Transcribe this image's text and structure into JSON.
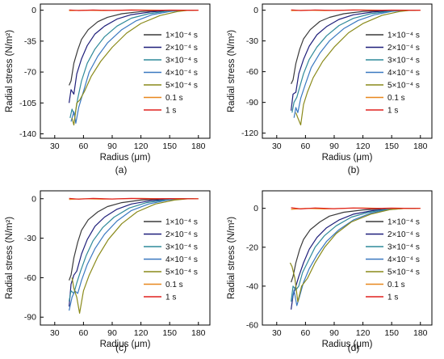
{
  "figure": {
    "panels_order": [
      "a",
      "b",
      "c",
      "d"
    ]
  },
  "chart_data": [
    {
      "panel_label": "(a)",
      "type": "line",
      "xlabel": "Radius (μm)",
      "ylabel": "Radial stress (N/m²)",
      "xlim": [
        15,
        192
      ],
      "ylim": [
        -145,
        7
      ],
      "xticks": [
        30,
        60,
        90,
        120,
        150,
        180
      ],
      "yticks": [
        0,
        -35,
        -70,
        -105,
        -140
      ],
      "grid": false,
      "legend_position": "right",
      "series": [
        {
          "name": "1×10⁻⁴ s",
          "color": "#3a3a3a",
          "x": [
            45,
            47,
            50,
            54,
            58,
            65,
            75,
            85,
            100,
            120,
            140,
            160,
            175
          ],
          "y": [
            -85,
            -80,
            -60,
            -45,
            -33,
            -22,
            -13,
            -8,
            -4,
            -1.5,
            -0.5,
            0,
            0
          ]
        },
        {
          "name": "2×10⁻⁴ s",
          "color": "#1f1f7a",
          "x": [
            45,
            47,
            50,
            53,
            58,
            64,
            72,
            82,
            95,
            110,
            130,
            150,
            165,
            175
          ],
          "y": [
            -105,
            -90,
            -95,
            -72,
            -55,
            -40,
            -27,
            -18,
            -10,
            -5,
            -2,
            -0.5,
            0,
            0
          ]
        },
        {
          "name": "3×10⁻⁴ s",
          "color": "#2f8a9a",
          "x": [
            46,
            48,
            51,
            54,
            58,
            64,
            72,
            82,
            95,
            110,
            128,
            148,
            165,
            175
          ],
          "y": [
            -122,
            -112,
            -120,
            -100,
            -80,
            -60,
            -44,
            -30,
            -18,
            -9,
            -4,
            -1,
            0,
            0
          ]
        },
        {
          "name": "4×10⁻⁴ s",
          "color": "#3a78c0",
          "x": [
            47,
            50,
            52,
            55,
            60,
            66,
            75,
            85,
            100,
            115,
            132,
            150,
            165,
            175
          ],
          "y": [
            -126,
            -115,
            -128,
            -110,
            -92,
            -70,
            -52,
            -37,
            -22,
            -12,
            -5,
            -1.5,
            0,
            0
          ]
        },
        {
          "name": "5×10⁻⁴ s",
          "color": "#8a8a1a",
          "x": [
            48,
            50,
            53,
            56,
            61,
            68,
            78,
            90,
            105,
            120,
            140,
            158,
            170,
            178
          ],
          "y": [
            -122,
            -130,
            -105,
            -102,
            -92,
            -75,
            -58,
            -42,
            -26,
            -15,
            -6,
            -1.5,
            0,
            0
          ]
        },
        {
          "name": "0.1 s",
          "color": "#e8871e",
          "x": [
            45,
            60,
            80,
            100,
            120,
            140,
            160,
            180
          ],
          "y": [
            -0.5,
            0,
            -0.3,
            0,
            0.2,
            0,
            -0.1,
            0
          ]
        },
        {
          "name": "1 s",
          "color": "#e0201e",
          "x": [
            45,
            55,
            70,
            90,
            110,
            130,
            150,
            170,
            180
          ],
          "y": [
            0.3,
            -0.3,
            0.2,
            -0.2,
            0.2,
            -0.1,
            0.1,
            0,
            0
          ]
        }
      ]
    },
    {
      "panel_label": "(b)",
      "type": "line",
      "xlabel": "Radius (μm)",
      "ylabel": "Radial stress (N/m²)",
      "xlim": [
        15,
        192
      ],
      "ylim": [
        -125,
        6
      ],
      "xticks": [
        30,
        60,
        90,
        120,
        150,
        180
      ],
      "yticks": [
        0,
        -30,
        -60,
        -90,
        -120
      ],
      "grid": false,
      "legend_position": "right",
      "series": [
        {
          "name": "1×10⁻⁴ s",
          "color": "#3a3a3a",
          "x": [
            45,
            47,
            50,
            54,
            58,
            65,
            75,
            85,
            100,
            120,
            140,
            160,
            175
          ],
          "y": [
            -72,
            -68,
            -52,
            -38,
            -28,
            -19,
            -11,
            -7,
            -3.5,
            -1.2,
            -0.4,
            0,
            0
          ]
        },
        {
          "name": "2×10⁻⁴ s",
          "color": "#1f1f7a",
          "x": [
            45,
            47,
            50,
            53,
            58,
            64,
            72,
            82,
            95,
            110,
            130,
            150,
            165,
            175
          ],
          "y": [
            -98,
            -82,
            -80,
            -62,
            -48,
            -35,
            -24,
            -16,
            -9,
            -4.5,
            -1.8,
            -0.4,
            0,
            0
          ]
        },
        {
          "name": "3×10⁻⁴ s",
          "color": "#2f8a9a",
          "x": [
            46,
            48,
            51,
            54,
            58,
            64,
            72,
            82,
            95,
            110,
            128,
            148,
            165,
            175
          ],
          "y": [
            -100,
            -90,
            -85,
            -75,
            -62,
            -48,
            -36,
            -25,
            -15,
            -8,
            -3.5,
            -1,
            0,
            0
          ]
        },
        {
          "name": "4×10⁻⁴ s",
          "color": "#3a78c0",
          "x": [
            48,
            50,
            52,
            55,
            60,
            66,
            75,
            85,
            100,
            115,
            132,
            150,
            165,
            175
          ],
          "y": [
            -105,
            -95,
            -100,
            -86,
            -72,
            -56,
            -42,
            -30,
            -18,
            -10,
            -4.5,
            -1.2,
            0,
            0
          ]
        },
        {
          "name": "5×10⁻⁴ s",
          "color": "#8a8a1a",
          "x": [
            50,
            52,
            55,
            58,
            62,
            68,
            78,
            90,
            105,
            120,
            140,
            158,
            170,
            178
          ],
          "y": [
            -100,
            -105,
            -112,
            -92,
            -80,
            -66,
            -50,
            -36,
            -22,
            -13,
            -5,
            -1.3,
            0,
            0
          ]
        },
        {
          "name": "0.1 s",
          "color": "#e8871e",
          "x": [
            45,
            60,
            80,
            100,
            120,
            140,
            160,
            180
          ],
          "y": [
            -0.5,
            0,
            -0.3,
            0,
            0.2,
            0,
            -0.1,
            0
          ]
        },
        {
          "name": "1 s",
          "color": "#e0201e",
          "x": [
            45,
            55,
            70,
            90,
            110,
            130,
            150,
            170,
            180
          ],
          "y": [
            0.3,
            -0.3,
            0.2,
            -0.2,
            0.2,
            -0.1,
            0.1,
            0,
            0
          ]
        }
      ]
    },
    {
      "panel_label": "(c)",
      "type": "line",
      "xlabel": "Radius (μm)",
      "ylabel": "Radial stress (N/m²)",
      "xlim": [
        15,
        192
      ],
      "ylim": [
        -96,
        6
      ],
      "xticks": [
        30,
        60,
        90,
        120,
        150,
        180
      ],
      "yticks": [
        0,
        -30,
        -60,
        -90
      ],
      "grid": false,
      "legend_position": "right",
      "series": [
        {
          "name": "1×10⁻⁴ s",
          "color": "#3a3a3a",
          "x": [
            45,
            47,
            50,
            54,
            58,
            65,
            75,
            85,
            100,
            120,
            140,
            160,
            175
          ],
          "y": [
            -62,
            -58,
            -45,
            -33,
            -24,
            -16,
            -10,
            -6,
            -3,
            -1,
            -0.3,
            0,
            0
          ]
        },
        {
          "name": "2×10⁻⁴ s",
          "color": "#1f1f7a",
          "x": [
            45,
            47,
            50,
            53,
            58,
            64,
            72,
            82,
            95,
            110,
            130,
            150,
            165,
            175
          ],
          "y": [
            -82,
            -65,
            -58,
            -55,
            -42,
            -31,
            -21,
            -14,
            -8,
            -4,
            -1.5,
            -0.4,
            0,
            0
          ]
        },
        {
          "name": "3×10⁻⁴ s",
          "color": "#2f8a9a",
          "x": [
            45,
            47,
            50,
            53,
            57,
            63,
            70,
            80,
            92,
            108,
            126,
            146,
            165,
            175
          ],
          "y": [
            -78,
            -70,
            -72,
            -64,
            -55,
            -43,
            -32,
            -22,
            -14,
            -7,
            -3,
            -0.8,
            0,
            0
          ]
        },
        {
          "name": "4×10⁻⁴ s",
          "color": "#3a78c0",
          "x": [
            45,
            48,
            51,
            54,
            58,
            64,
            72,
            82,
            95,
            110,
            128,
            148,
            165,
            175
          ],
          "y": [
            -85,
            -75,
            -70,
            -72,
            -62,
            -50,
            -38,
            -27,
            -17,
            -9,
            -4,
            -1,
            0,
            0
          ]
        },
        {
          "name": "5×10⁻⁴ s",
          "color": "#8a8a1a",
          "x": [
            48,
            50,
            53,
            56,
            60,
            66,
            75,
            86,
            100,
            116,
            135,
            155,
            170,
            178
          ],
          "y": [
            -60,
            -68,
            -75,
            -87,
            -70,
            -58,
            -44,
            -31,
            -19,
            -10,
            -4,
            -1,
            0,
            0
          ]
        },
        {
          "name": "0.1 s",
          "color": "#e8871e",
          "x": [
            45,
            60,
            80,
            100,
            120,
            140,
            160,
            180
          ],
          "y": [
            -0.5,
            0,
            -0.3,
            0,
            0.2,
            0,
            -0.1,
            0
          ]
        },
        {
          "name": "1 s",
          "color": "#e0201e",
          "x": [
            45,
            55,
            70,
            90,
            110,
            130,
            150,
            170,
            180
          ],
          "y": [
            0.3,
            -0.3,
            0.2,
            -0.2,
            0.2,
            -0.1,
            0.1,
            0,
            0
          ]
        }
      ]
    },
    {
      "panel_label": "(d)",
      "type": "line",
      "xlabel": "Radius (μm)",
      "ylabel": "Radial stress (N/m²)",
      "xlim": [
        15,
        192
      ],
      "ylim": [
        -60,
        9
      ],
      "xticks": [
        30,
        60,
        90,
        120,
        150,
        180
      ],
      "yticks": [
        0,
        -20,
        -40,
        -60
      ],
      "grid": false,
      "legend_position": "right",
      "series": [
        {
          "name": "1×10⁻⁴ s",
          "color": "#3a3a3a",
          "x": [
            45,
            47,
            50,
            54,
            58,
            65,
            75,
            85,
            100,
            120,
            140,
            160,
            175
          ],
          "y": [
            -38,
            -35,
            -28,
            -21,
            -16,
            -11,
            -7,
            -4,
            -2,
            -0.8,
            -0.2,
            0,
            0
          ]
        },
        {
          "name": "2×10⁻⁴ s",
          "color": "#1f1f7a",
          "x": [
            45,
            47,
            50,
            53,
            58,
            64,
            72,
            82,
            95,
            110,
            130,
            150,
            165,
            175
          ],
          "y": [
            -52,
            -45,
            -40,
            -35,
            -28,
            -21,
            -15,
            -10,
            -6,
            -3,
            -1.2,
            -0.3,
            0,
            0
          ]
        },
        {
          "name": "3×10⁻⁴ s",
          "color": "#2f8a9a",
          "x": [
            45,
            47,
            50,
            53,
            57,
            63,
            70,
            80,
            92,
            108,
            126,
            146,
            165,
            175
          ],
          "y": [
            -48,
            -40,
            -42,
            -40,
            -33,
            -27,
            -20,
            -14,
            -9,
            -4.5,
            -2,
            -0.5,
            0,
            0
          ]
        },
        {
          "name": "4×10⁻⁴ s",
          "color": "#3a78c0",
          "x": [
            46,
            48,
            51,
            54,
            58,
            64,
            72,
            82,
            95,
            110,
            128,
            148,
            165,
            175
          ],
          "y": [
            -47,
            -42,
            -50,
            -45,
            -38,
            -31,
            -24,
            -17,
            -11,
            -6,
            -2.5,
            -0.6,
            0,
            0
          ]
        },
        {
          "name": "5×10⁻⁴ s",
          "color": "#8a8a1a",
          "x": [
            44,
            46,
            49,
            52,
            56,
            62,
            70,
            80,
            92,
            108,
            128,
            148,
            165,
            178
          ],
          "y": [
            -28,
            -30,
            -36,
            -48,
            -40,
            -36,
            -28,
            -20,
            -13,
            -7,
            -3,
            -0.7,
            0,
            0
          ]
        },
        {
          "name": "0.1 s",
          "color": "#e8871e",
          "x": [
            45,
            60,
            80,
            100,
            120,
            140,
            160,
            180
          ],
          "y": [
            -0.5,
            0,
            -0.3,
            0,
            0.2,
            0,
            -0.1,
            0
          ]
        },
        {
          "name": "1 s",
          "color": "#e0201e",
          "x": [
            45,
            55,
            70,
            90,
            110,
            130,
            150,
            170,
            180
          ],
          "y": [
            0.3,
            -0.3,
            0.2,
            -0.2,
            0.2,
            -0.1,
            0.1,
            0,
            0
          ]
        }
      ]
    }
  ]
}
